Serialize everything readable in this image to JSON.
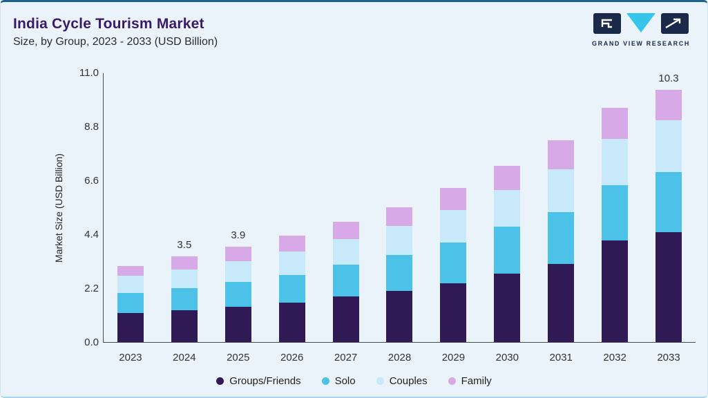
{
  "logo": {
    "text": "GRAND VIEW RESEARCH"
  },
  "chart_data": {
    "type": "bar",
    "stacked": true,
    "title": "India Cycle Tourism Market",
    "subtitle": "Size, by Group, 2023 - 2033 (USD Billion)",
    "ylabel": "Market Size (USD Billion)",
    "ylim": [
      0,
      11.0
    ],
    "yticks": [
      0.0,
      2.2,
      4.4,
      6.6,
      8.8,
      11.0
    ],
    "categories": [
      "2023",
      "2024",
      "2025",
      "2026",
      "2027",
      "2028",
      "2029",
      "2030",
      "2031",
      "2032",
      "2033"
    ],
    "series": [
      {
        "name": "Groups/Friends",
        "color": "#2f1a55",
        "values": [
          1.2,
          1.3,
          1.45,
          1.6,
          1.85,
          2.1,
          2.4,
          2.8,
          3.2,
          4.15,
          4.5
        ]
      },
      {
        "name": "Solo",
        "color": "#4cc2e9",
        "values": [
          0.8,
          0.9,
          1.0,
          1.15,
          1.3,
          1.45,
          1.65,
          1.9,
          2.1,
          2.25,
          2.45
        ]
      },
      {
        "name": "Couples",
        "color": "#c7e9f9",
        "values": [
          0.7,
          0.75,
          0.85,
          0.95,
          1.05,
          1.2,
          1.35,
          1.5,
          1.75,
          1.9,
          2.1
        ]
      },
      {
        "name": "Family",
        "color": "#d7a9e6",
        "values": [
          0.4,
          0.55,
          0.6,
          0.65,
          0.7,
          0.75,
          0.9,
          1.0,
          1.2,
          1.25,
          1.25
        ]
      }
    ],
    "bar_labels": {
      "2024": "3.5",
      "2025": "3.9",
      "2033": "10.3"
    },
    "legend_position": "bottom",
    "grid": false
  }
}
